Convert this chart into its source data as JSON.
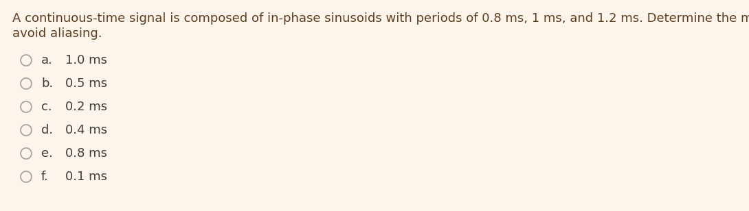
{
  "background_color": "#fdf5ec",
  "question_text_line1": "A continuous-time signal is composed of in-phase sinusoids with periods of 0.8 ms, 1 ms, and 1.2 ms. Determine the maximum sampling period allowed to",
  "question_text_line2": "avoid aliasing.",
  "options": [
    {
      "label": "a.",
      "text": "1.0 ms"
    },
    {
      "label": "b.",
      "text": "0.5 ms"
    },
    {
      "label": "c.",
      "text": "0.2 ms"
    },
    {
      "label": "d.",
      "text": "0.4 ms"
    },
    {
      "label": "e.",
      "text": "0.8 ms"
    },
    {
      "label": "f.",
      "text": "0.1 ms"
    }
  ],
  "text_color": "#3d3d3d",
  "question_color": "#5c3d1e",
  "circle_color": "#aaaaaa",
  "font_size_question": 13.0,
  "font_size_options": 13.0,
  "figwidth": 10.9,
  "figheight": 3.08,
  "dpi": 100
}
